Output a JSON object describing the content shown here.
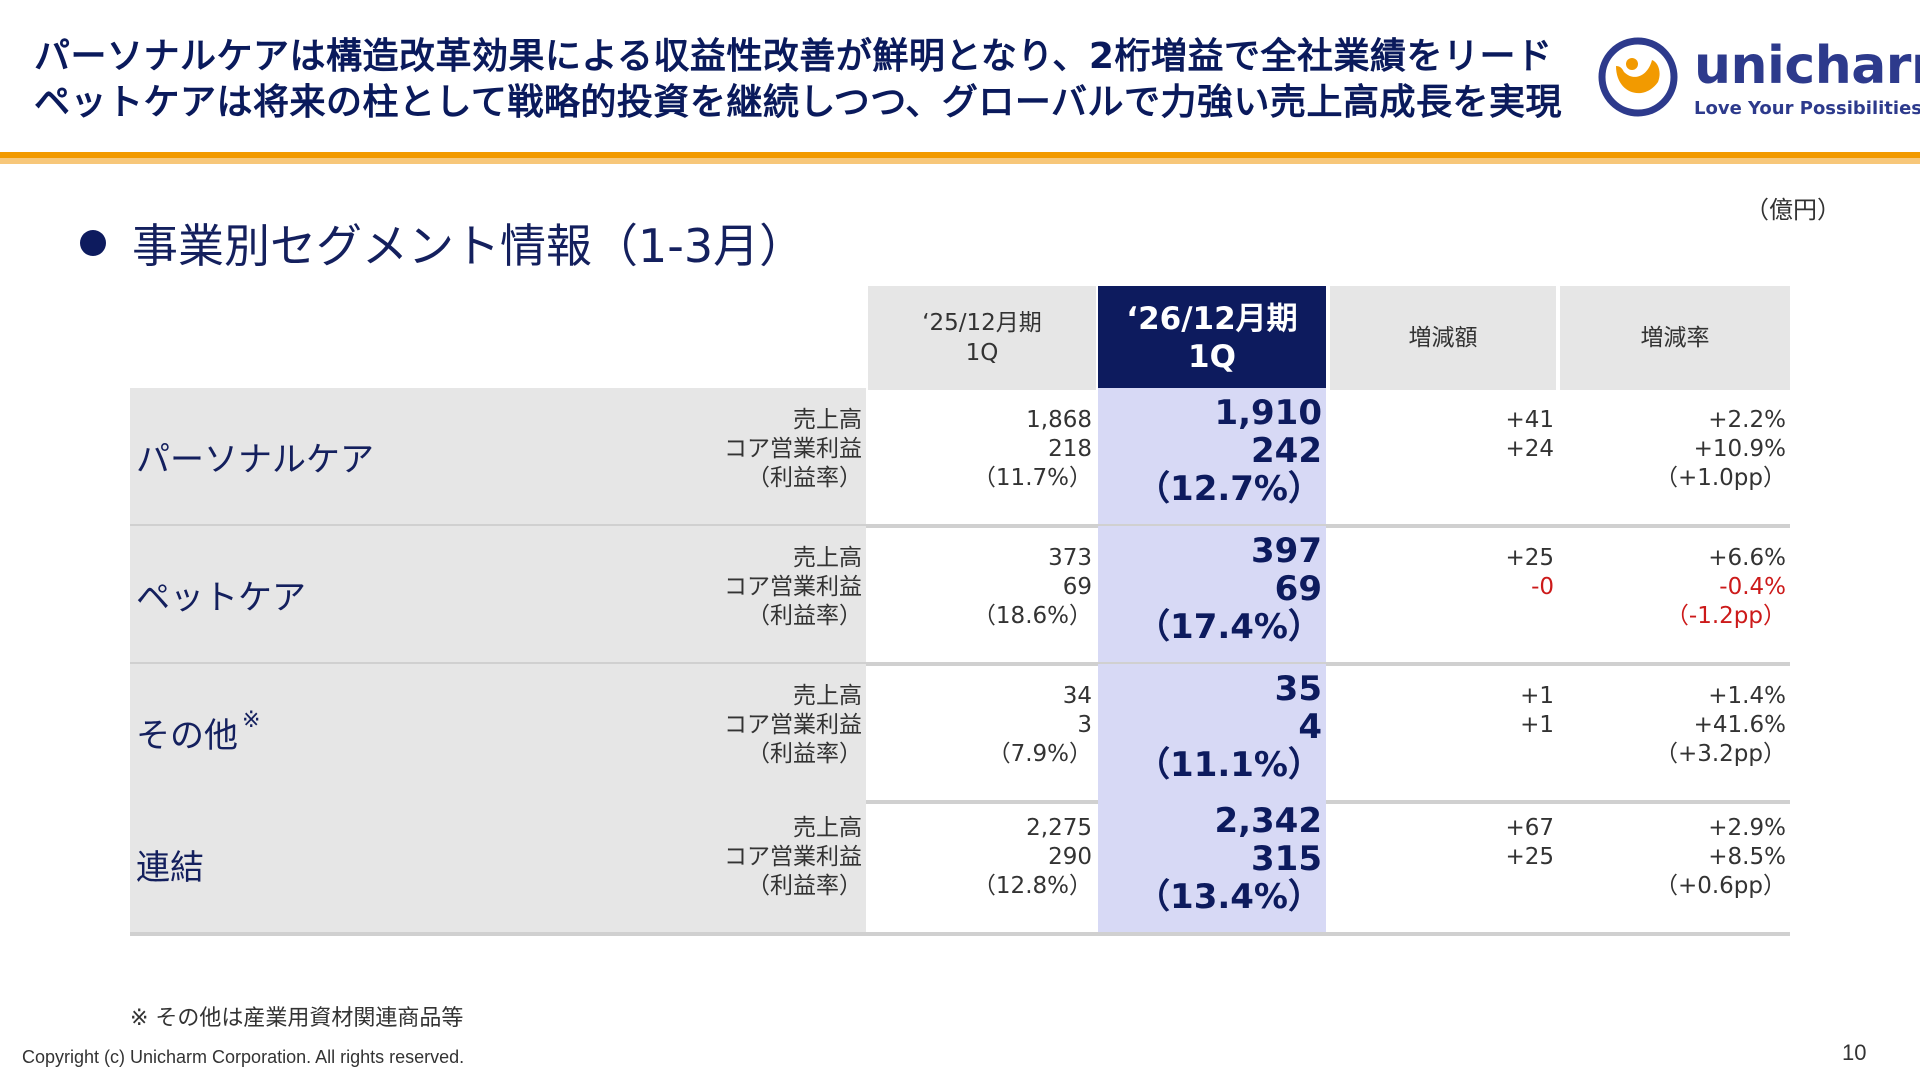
{
  "header": {
    "line1": "パーソナルケアは構造改革効果による収益性改善が鮮明となり、2桁増益で全社業績をリード",
    "line2": "ペットケアは将来の柱として戦略的投資を継続しつつ、グローバルで力強い売上高成長を実現"
  },
  "logo": {
    "name": "unicharm",
    "tagline": "Love Your Possibilities",
    "colors": {
      "brand_blue": "#2d3a8c",
      "brand_orange": "#f29a00"
    }
  },
  "unit": "（億円）",
  "section_title": "事業別セグメント情報（1-3月）",
  "table": {
    "columns": {
      "prev": "‘25/12月期\n1Q",
      "current": "‘26/12月期\n1Q",
      "diff": "増減額",
      "rate": "増減率"
    },
    "rows": [
      {
        "segment": "パーソナルケア",
        "note_mark": "",
        "metrics": [
          "売上高",
          "コア営業利益",
          "（利益率）"
        ],
        "prev": [
          "1,868",
          "218",
          "（11.7%）"
        ],
        "current": [
          "1,910",
          "242",
          "（12.7%）"
        ],
        "diff": [
          "+41",
          "+24",
          ""
        ],
        "rate": [
          {
            "t": "+2.2%"
          },
          {
            "t": "+10.9%"
          },
          {
            "t": "（+1.0pp）"
          }
        ]
      },
      {
        "segment": "ペットケア",
        "note_mark": "",
        "metrics": [
          "売上高",
          "コア営業利益",
          "（利益率）"
        ],
        "prev": [
          "373",
          "69",
          "（18.6%）"
        ],
        "current": [
          "397",
          "69",
          "（17.4%）"
        ],
        "diff": [
          "+25",
          "-0",
          ""
        ],
        "diff_negative": [
          false,
          true,
          false
        ],
        "rate": [
          {
            "t": "+6.6%"
          },
          {
            "t": "-0.4%",
            "neg": true
          },
          {
            "t": "（-1.2pp）",
            "neg": true
          }
        ]
      },
      {
        "segment": "その他",
        "note_mark": "※",
        "metrics": [
          "売上高",
          "コア営業利益",
          "（利益率）"
        ],
        "prev": [
          "34",
          "3",
          "（7.9%）"
        ],
        "current": [
          "35",
          "4",
          "（11.1%）"
        ],
        "diff": [
          "+1",
          "+1",
          ""
        ],
        "rate": [
          {
            "t": "+1.4%"
          },
          {
            "t": "+41.6%"
          },
          {
            "t": "（+3.2pp）"
          }
        ]
      },
      {
        "segment": "連結",
        "note_mark": "",
        "metrics": [
          "売上高",
          "コア営業利益",
          "（利益率）"
        ],
        "prev": [
          "2,275",
          "290",
          "（12.8%）"
        ],
        "current": [
          "2,342",
          "315",
          "（13.4%）"
        ],
        "diff": [
          "+67",
          "+25",
          ""
        ],
        "rate": [
          {
            "t": "+2.9%"
          },
          {
            "t": "+8.5%"
          },
          {
            "t": "（+0.6pp）"
          }
        ]
      }
    ]
  },
  "footnote": "※ その他は産業用資材関連商品等",
  "copyright": "Copyright (c) Unicharm Corporation. All rights reserved.",
  "page_number": "10"
}
